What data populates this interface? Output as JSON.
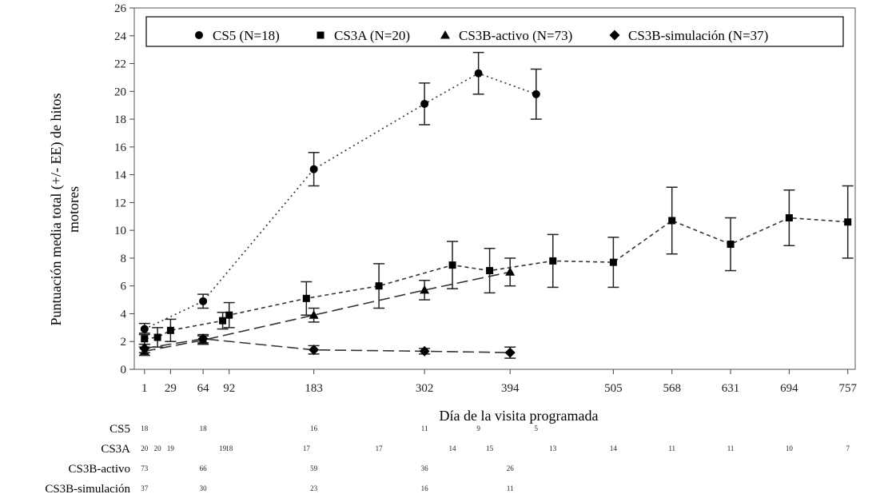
{
  "chart_data": {
    "type": "line",
    "title": "",
    "xlabel": "Día de la visita programada",
    "ylabel_lines": [
      "Puntuación media total (+/- EE) de hitos",
      "motores"
    ],
    "ylim": [
      0,
      26
    ],
    "y_ticks": [
      0,
      2,
      4,
      6,
      8,
      10,
      12,
      14,
      16,
      18,
      20,
      22,
      24,
      26
    ],
    "xlim": [
      -10,
      765
    ],
    "x_ticks": [
      1,
      29,
      64,
      92,
      183,
      302,
      394,
      505,
      568,
      631,
      694,
      757
    ],
    "legend_position": "top",
    "series": [
      {
        "name": "CS5 (N=18)",
        "legend_label": "CS5 (N=18)",
        "marker": "circle",
        "line_style": "dotted",
        "points": [
          {
            "x": 1,
            "y": 2.9,
            "err": 0.4
          },
          {
            "x": 64,
            "y": 4.9,
            "err": 0.5
          },
          {
            "x": 183,
            "y": 14.4,
            "err": 1.2
          },
          {
            "x": 302,
            "y": 19.1,
            "err": 1.5
          },
          {
            "x": 360,
            "y": 21.3,
            "err": 1.5
          },
          {
            "x": 422,
            "y": 19.8,
            "err": 1.8
          }
        ]
      },
      {
        "name": "CS3A (N=20)",
        "legend_label": "CS3A (N=20)",
        "marker": "square",
        "line_style": "short-dash",
        "points": [
          {
            "x": 1,
            "y": 2.2,
            "err": 0.4
          },
          {
            "x": 15,
            "y": 2.3,
            "err": 0.7
          },
          {
            "x": 29,
            "y": 2.8,
            "err": 0.8
          },
          {
            "x": 85,
            "y": 3.5,
            "err": 0.6
          },
          {
            "x": 92,
            "y": 3.9,
            "err": 0.9
          },
          {
            "x": 175,
            "y": 5.1,
            "err": 1.2
          },
          {
            "x": 253,
            "y": 6.0,
            "err": 1.6
          },
          {
            "x": 332,
            "y": 7.5,
            "err": 1.7
          },
          {
            "x": 372,
            "y": 7.1,
            "err": 1.6
          },
          {
            "x": 440,
            "y": 7.8,
            "err": 1.9
          },
          {
            "x": 505,
            "y": 7.7,
            "err": 1.8
          },
          {
            "x": 568,
            "y": 10.7,
            "err": 2.4
          },
          {
            "x": 631,
            "y": 9.0,
            "err": 1.9
          },
          {
            "x": 694,
            "y": 10.9,
            "err": 2.0
          },
          {
            "x": 757,
            "y": 10.6,
            "err": 2.6
          }
        ]
      },
      {
        "name": "CS3B-activo (N=73)",
        "legend_label": "CS3B-activo (N=73)",
        "marker": "triangle",
        "line_style": "long-dash",
        "points": [
          {
            "x": 1,
            "y": 1.3,
            "err": 0.3
          },
          {
            "x": 64,
            "y": 2.1,
            "err": 0.3
          },
          {
            "x": 183,
            "y": 3.9,
            "err": 0.5
          },
          {
            "x": 302,
            "y": 5.7,
            "err": 0.7
          },
          {
            "x": 394,
            "y": 7.0,
            "err": 1.0
          }
        ]
      },
      {
        "name": "CS3B-simulación (N=37)",
        "legend_label": "CS3B-simulación (N=37)",
        "marker": "diamond",
        "line_style": "long-dash",
        "points": [
          {
            "x": 1,
            "y": 1.5,
            "err": 0.3
          },
          {
            "x": 64,
            "y": 2.2,
            "err": 0.3
          },
          {
            "x": 183,
            "y": 1.4,
            "err": 0.3
          },
          {
            "x": 302,
            "y": 1.3,
            "err": 0.2
          },
          {
            "x": 394,
            "y": 1.2,
            "err": 0.4
          }
        ]
      }
    ],
    "at_risk": [
      {
        "label": "CS5",
        "entries": [
          {
            "x": 1,
            "n": "18"
          },
          {
            "x": 64,
            "n": "18"
          },
          {
            "x": 183,
            "n": "16"
          },
          {
            "x": 302,
            "n": "11"
          },
          {
            "x": 360,
            "n": "9"
          },
          {
            "x": 422,
            "n": "5"
          }
        ]
      },
      {
        "label": "CS3A",
        "entries": [
          {
            "x": 1,
            "n": "20"
          },
          {
            "x": 15,
            "n": "20"
          },
          {
            "x": 29,
            "n": "19"
          },
          {
            "x": 85,
            "n": "19"
          },
          {
            "x": 92,
            "n": "18"
          },
          {
            "x": 175,
            "n": "17"
          },
          {
            "x": 253,
            "n": "17"
          },
          {
            "x": 332,
            "n": "14"
          },
          {
            "x": 372,
            "n": "15"
          },
          {
            "x": 440,
            "n": "13"
          },
          {
            "x": 505,
            "n": "14"
          },
          {
            "x": 568,
            "n": "11"
          },
          {
            "x": 631,
            "n": "11"
          },
          {
            "x": 694,
            "n": "10"
          },
          {
            "x": 757,
            "n": "7"
          }
        ]
      },
      {
        "label": "CS3B-activo",
        "entries": [
          {
            "x": 1,
            "n": "73"
          },
          {
            "x": 64,
            "n": "66"
          },
          {
            "x": 183,
            "n": "59"
          },
          {
            "x": 302,
            "n": "36"
          },
          {
            "x": 394,
            "n": "26"
          }
        ]
      },
      {
        "label": "CS3B-simulación",
        "entries": [
          {
            "x": 1,
            "n": "37"
          },
          {
            "x": 64,
            "n": "30"
          },
          {
            "x": 183,
            "n": "23"
          },
          {
            "x": 302,
            "n": "16"
          },
          {
            "x": 394,
            "n": "11"
          }
        ]
      }
    ]
  }
}
